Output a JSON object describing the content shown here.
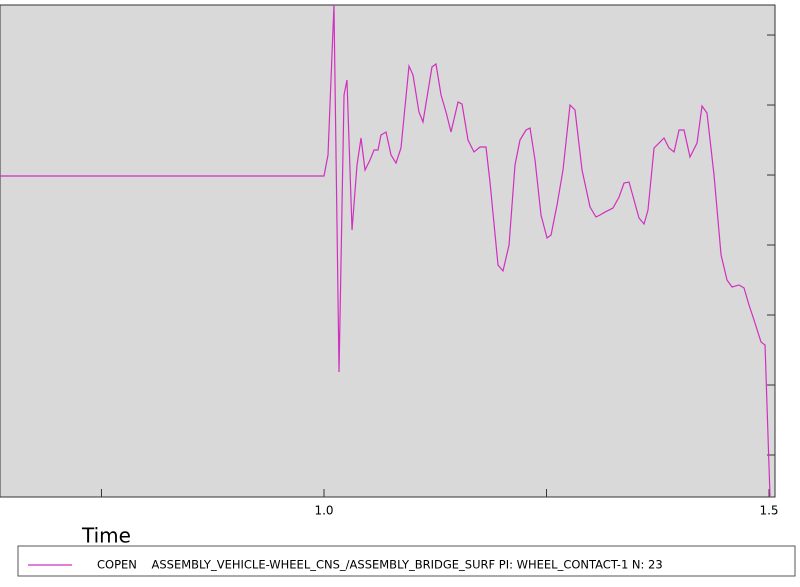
{
  "chart_data": {
    "type": "line",
    "x_label": "Time",
    "xlim": [
      0.636,
      1.5067
    ],
    "ylim": [
      -0.6,
      6.429
    ],
    "xticks": [
      {
        "value": 1,
        "label": "1.0"
      },
      1.5
    ],
    "xminor_ticks": [
      0.75,
      1.25
    ],
    "yticks": [
      0,
      1,
      2,
      3,
      4,
      5,
      6
    ],
    "x": [
      0.636,
      1.0,
      1.0045,
      1.0112,
      1.0169,
      1.0225,
      1.0258,
      1.0315,
      1.0371,
      1.0416,
      1.0461,
      1.0517,
      1.0562,
      1.0607,
      1.064,
      1.0697,
      1.0753,
      1.0809,
      1.0865,
      1.0955,
      1.1,
      1.1067,
      1.1112,
      1.1213,
      1.1258,
      1.1315,
      1.1371,
      1.1427,
      1.1506,
      1.1551,
      1.1618,
      1.1685,
      1.1753,
      1.182,
      1.1865,
      1.1955,
      1.2011,
      1.2079,
      1.2146,
      1.2202,
      1.227,
      1.2315,
      1.2371,
      1.2438,
      1.2506,
      1.2551,
      1.2618,
      1.2685,
      1.2764,
      1.282,
      1.2899,
      1.2989,
      1.3056,
      1.3101,
      1.3157,
      1.3247,
      1.3315,
      1.3371,
      1.3427,
      1.3483,
      1.3539,
      1.3596,
      1.364,
      1.3708,
      1.3764,
      1.382,
      1.3876,
      1.3933,
      1.3989,
      1.4045,
      1.4112,
      1.4191,
      1.4247,
      1.4303,
      1.4382,
      1.4461,
      1.4528,
      1.4584,
      1.4663,
      1.4719,
      1.4775,
      1.4831,
      1.491,
      1.4955,
      1.5011
    ],
    "series": [
      {
        "name": "COPEN    ASSEMBLY_VEHICLE-WHEEL_CNS_/ASSEMBLY_BRIDGE_SURF PI: WHEEL_CONTACT-1 N: 23",
        "color": "#d030c0",
        "values": [
          3.986,
          3.986,
          4.286,
          6.429,
          1.186,
          5.143,
          5.357,
          3.214,
          4.143,
          4.529,
          4.071,
          4.214,
          4.357,
          4.357,
          4.571,
          4.614,
          4.286,
          4.171,
          4.386,
          5.557,
          5.429,
          4.9,
          4.757,
          5.543,
          5.586,
          5.143,
          4.9,
          4.614,
          5.043,
          5.014,
          4.5,
          4.329,
          4.4,
          4.4,
          3.9,
          2.714,
          2.629,
          3.0,
          4.143,
          4.5,
          4.643,
          4.671,
          4.214,
          3.429,
          3.1,
          3.143,
          3.571,
          4.071,
          5.0,
          4.929,
          4.071,
          3.543,
          3.4,
          3.429,
          3.471,
          3.529,
          3.686,
          3.886,
          3.9,
          3.643,
          3.386,
          3.3,
          3.5,
          4.386,
          4.457,
          4.529,
          4.386,
          4.329,
          4.643,
          4.643,
          4.257,
          4.457,
          4.986,
          4.886,
          4.0,
          2.857,
          2.5,
          2.4,
          2.429,
          2.386,
          2.143,
          1.929,
          1.614,
          1.571,
          -0.6
        ]
      }
    ],
    "background": "#d9d9d9"
  }
}
